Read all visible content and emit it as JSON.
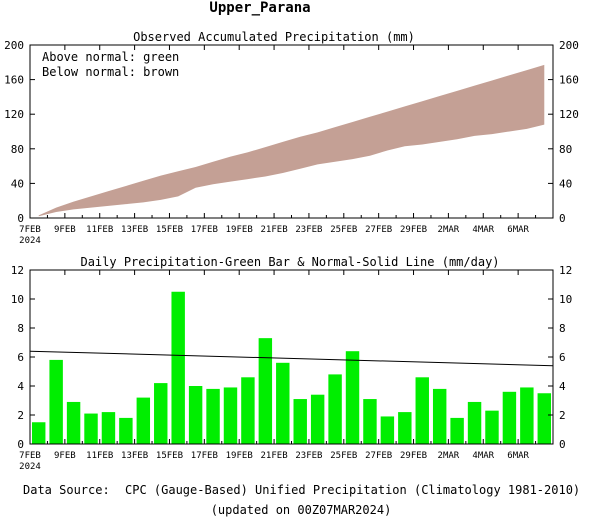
{
  "page_title": "Upper_Parana",
  "footer": {
    "source_label": "Data Source:",
    "source_text": "CPC (Gauge-Based) Unified Precipitation (Climatology 1981-2010)",
    "updated": "(updated on 00Z07MAR2024)"
  },
  "colors": {
    "bar": "#00ee00",
    "band": "#c4a095",
    "source_label": "#ee2222"
  },
  "chart_data": [
    {
      "type": "area",
      "title": "Observed Accumulated Precipitation (mm)",
      "legend_lines": [
        "Above normal: green",
        "Below normal: brown"
      ],
      "ylim": [
        0,
        200
      ],
      "yticks": [
        "0",
        "40",
        "80",
        "120",
        "160",
        "200"
      ],
      "x_start": "7FEB",
      "x_end": "6MAR",
      "xtick_labels": [
        "7FEB",
        "9FEB",
        "11FEB",
        "13FEB",
        "15FEB",
        "17FEB",
        "19FEB",
        "21FEB",
        "23FEB",
        "25FEB",
        "27FEB",
        "29FEB",
        "2MAR",
        "4MAR",
        "6MAR"
      ],
      "xtick_sublabel": "2024",
      "series": [
        {
          "name": "Normal",
          "values": [
            3,
            12,
            19,
            25,
            31,
            37,
            43,
            49,
            54,
            59,
            65,
            71,
            76,
            82,
            88,
            94,
            99,
            105,
            111,
            117,
            123,
            129,
            135,
            141,
            147,
            153,
            159,
            165,
            171,
            177
          ]
        },
        {
          "name": "Observed",
          "values": [
            2,
            7,
            10,
            12,
            14,
            16,
            18,
            21,
            25,
            35,
            39,
            42,
            45,
            48,
            52,
            57,
            62,
            65,
            68,
            72,
            78,
            83,
            85,
            88,
            91,
            95,
            97,
            100,
            103,
            108
          ]
        }
      ]
    },
    {
      "type": "bar",
      "title": "Daily Precipitation-Green Bar & Normal-Solid Line (mm/day)",
      "ylim": [
        0,
        12
      ],
      "yticks": [
        "0",
        "2",
        "4",
        "6",
        "8",
        "10",
        "12"
      ],
      "x_start": "7FEB",
      "x_end": "6MAR",
      "xtick_labels": [
        "7FEB",
        "9FEB",
        "11FEB",
        "13FEB",
        "15FEB",
        "17FEB",
        "19FEB",
        "21FEB",
        "23FEB",
        "25FEB",
        "27FEB",
        "29FEB",
        "2MAR",
        "4MAR",
        "6MAR"
      ],
      "xtick_sublabel": "2024",
      "values": [
        1.5,
        5.8,
        2.9,
        2.1,
        2.2,
        1.8,
        3.2,
        4.2,
        10.5,
        4.0,
        3.8,
        3.9,
        4.6,
        7.3,
        5.6,
        3.1,
        3.4,
        4.8,
        6.4,
        3.1,
        1.9,
        2.2,
        4.6,
        3.8,
        1.8,
        2.9,
        2.3,
        3.6,
        3.9,
        3.5
      ],
      "normal_line": [
        6.4,
        5.4
      ]
    }
  ]
}
